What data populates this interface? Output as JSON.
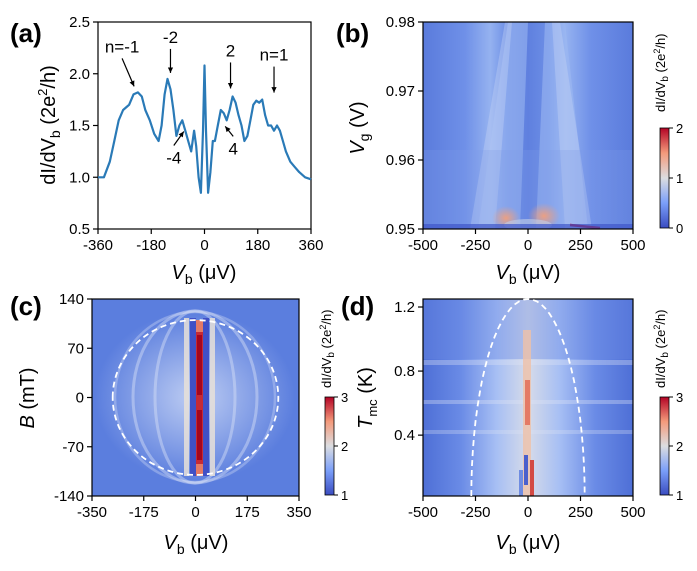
{
  "colors": {
    "curve": "#2a7ab7",
    "map_low": "#3a4cc0",
    "map_mid": "#dcdde0",
    "map_high": "#b40426",
    "dashed": "#ffffff"
  },
  "chart_data": [
    {
      "panel": "(a)",
      "type": "line",
      "xlabel_main": "V",
      "xlabel_sub": "b",
      "xlabel_unit": " (μV)",
      "ylabel_main": "dI/dV",
      "ylabel_sub": "b",
      "ylabel_unit": " (2e",
      "ylabel_sup": "2",
      "ylabel_end": "/h)",
      "xlim": [
        -360,
        360
      ],
      "ylim": [
        0.5,
        2.5
      ],
      "xticks": [
        "-360",
        "-180",
        "0",
        "180",
        "360"
      ],
      "xtick_values": [
        -360,
        -180,
        0,
        180,
        360
      ],
      "yticks": [
        "0.5",
        "1.0",
        "1.5",
        "2.0",
        "2.5"
      ],
      "ytick_values": [
        0.5,
        1.0,
        1.5,
        2.0,
        2.5
      ],
      "x": [
        -360,
        -340,
        -320,
        -305,
        -290,
        -275,
        -255,
        -240,
        -225,
        -212,
        -200,
        -185,
        -170,
        -155,
        -145,
        -135,
        -125,
        -115,
        -105,
        -95,
        -85,
        -75,
        -65,
        -55,
        -45,
        -35,
        -28,
        -20,
        -12,
        -5,
        0,
        5,
        12,
        20,
        28,
        35,
        45,
        55,
        65,
        75,
        85,
        95,
        105,
        115,
        125,
        135,
        145,
        155,
        165,
        175,
        185,
        195,
        205,
        215,
        225,
        235,
        245,
        255,
        265,
        275,
        290,
        305,
        320,
        340,
        360
      ],
      "y": [
        1.0,
        1.0,
        1.15,
        1.35,
        1.55,
        1.65,
        1.7,
        1.8,
        1.82,
        1.78,
        1.65,
        1.55,
        1.42,
        1.35,
        1.5,
        1.8,
        1.95,
        1.85,
        1.65,
        1.4,
        1.5,
        1.55,
        1.45,
        1.35,
        1.25,
        1.45,
        1.3,
        1.0,
        0.85,
        1.45,
        2.08,
        1.45,
        0.85,
        1.05,
        1.35,
        1.35,
        1.5,
        1.65,
        1.62,
        1.55,
        1.65,
        1.78,
        1.72,
        1.6,
        1.5,
        1.35,
        1.4,
        1.55,
        1.7,
        1.74,
        1.72,
        1.75,
        1.6,
        1.5,
        1.5,
        1.45,
        1.5,
        1.45,
        1.35,
        1.25,
        1.15,
        1.1,
        1.05,
        1.0,
        0.98
      ],
      "annotations": [
        {
          "label": "n=-1",
          "x": -238,
          "y": 1.82
        },
        {
          "label": "-2",
          "x": -115,
          "y": 1.95
        },
        {
          "label": "-4",
          "x": -70,
          "y": 1.5
        },
        {
          "label": "2",
          "x": 88,
          "y": 1.8
        },
        {
          "label": "4",
          "x": 70,
          "y": 1.55
        },
        {
          "label": "n=1",
          "x": 235,
          "y": 1.76
        }
      ]
    },
    {
      "panel": "(b)",
      "type": "heatmap",
      "xlabel_main": "V",
      "xlabel_sub": "b",
      "xlabel_unit": " (μV)",
      "ylabel_main": "V",
      "ylabel_sub": "g",
      "ylabel_unit": " (V)",
      "xlim": [
        -500,
        500
      ],
      "ylim": [
        0.95,
        0.98
      ],
      "xticks": [
        "-500",
        "-250",
        "0",
        "250",
        "500"
      ],
      "xtick_values": [
        -500,
        -250,
        0,
        250,
        500
      ],
      "yticks": [
        "0.95",
        "0.96",
        "0.97",
        "0.98"
      ],
      "ytick_values": [
        0.95,
        0.96,
        0.97,
        0.98
      ],
      "colorbar": {
        "label": "dI/dV_b (2e^2/h)",
        "min": 0,
        "max": 2,
        "ticks": [
          "0",
          "1",
          "2"
        ],
        "tick_values": [
          0,
          1,
          2
        ]
      }
    },
    {
      "panel": "(c)",
      "type": "heatmap",
      "xlabel_main": "V",
      "xlabel_sub": "b",
      "xlabel_unit": " (μV)",
      "ylabel_main": "B",
      "ylabel_sub": "",
      "ylabel_unit": " (mT)",
      "xlim": [
        -350,
        350
      ],
      "ylim": [
        -140,
        140
      ],
      "xticks": [
        "-350",
        "-175",
        "0",
        "175",
        "350"
      ],
      "xtick_values": [
        -350,
        -175,
        0,
        175,
        350
      ],
      "yticks": [
        "-140",
        "-70",
        "0",
        "70",
        "140"
      ],
      "ytick_values": [
        -140,
        -70,
        0,
        70,
        140
      ],
      "dashed_ellipse": {
        "x_semi_axis": 280,
        "y_semi_axis": 110
      },
      "colorbar": {
        "label": "dI/dV_b (2e^2/h)",
        "min": 1,
        "max": 3,
        "ticks": [
          "1",
          "2",
          "3"
        ],
        "tick_values": [
          1,
          2,
          3
        ]
      }
    },
    {
      "panel": "(d)",
      "type": "heatmap",
      "xlabel_main": "V",
      "xlabel_sub": "b",
      "xlabel_unit": " (μV)",
      "ylabel_main": "T",
      "ylabel_sub": "mc",
      "ylabel_unit": " (K)",
      "xlim": [
        -500,
        500
      ],
      "ylim": [
        0.02,
        1.25
      ],
      "xticks": [
        "-500",
        "-250",
        "0",
        "250",
        "500"
      ],
      "xtick_values": [
        -500,
        -250,
        0,
        250,
        500
      ],
      "yticks": [
        "0.4",
        "0.8",
        "1.2"
      ],
      "ytick_values": [
        0.4,
        0.8,
        1.2
      ],
      "dashed_arc": {
        "x_half_width": 270,
        "peak_y": 1.25,
        "base_y": 0.02
      },
      "colorbar": {
        "label": "dI/dV_b (2e^2/h)",
        "min": 1,
        "max": 3,
        "ticks": [
          "1",
          "2",
          "3"
        ],
        "tick_values": [
          1,
          2,
          3
        ]
      }
    }
  ]
}
